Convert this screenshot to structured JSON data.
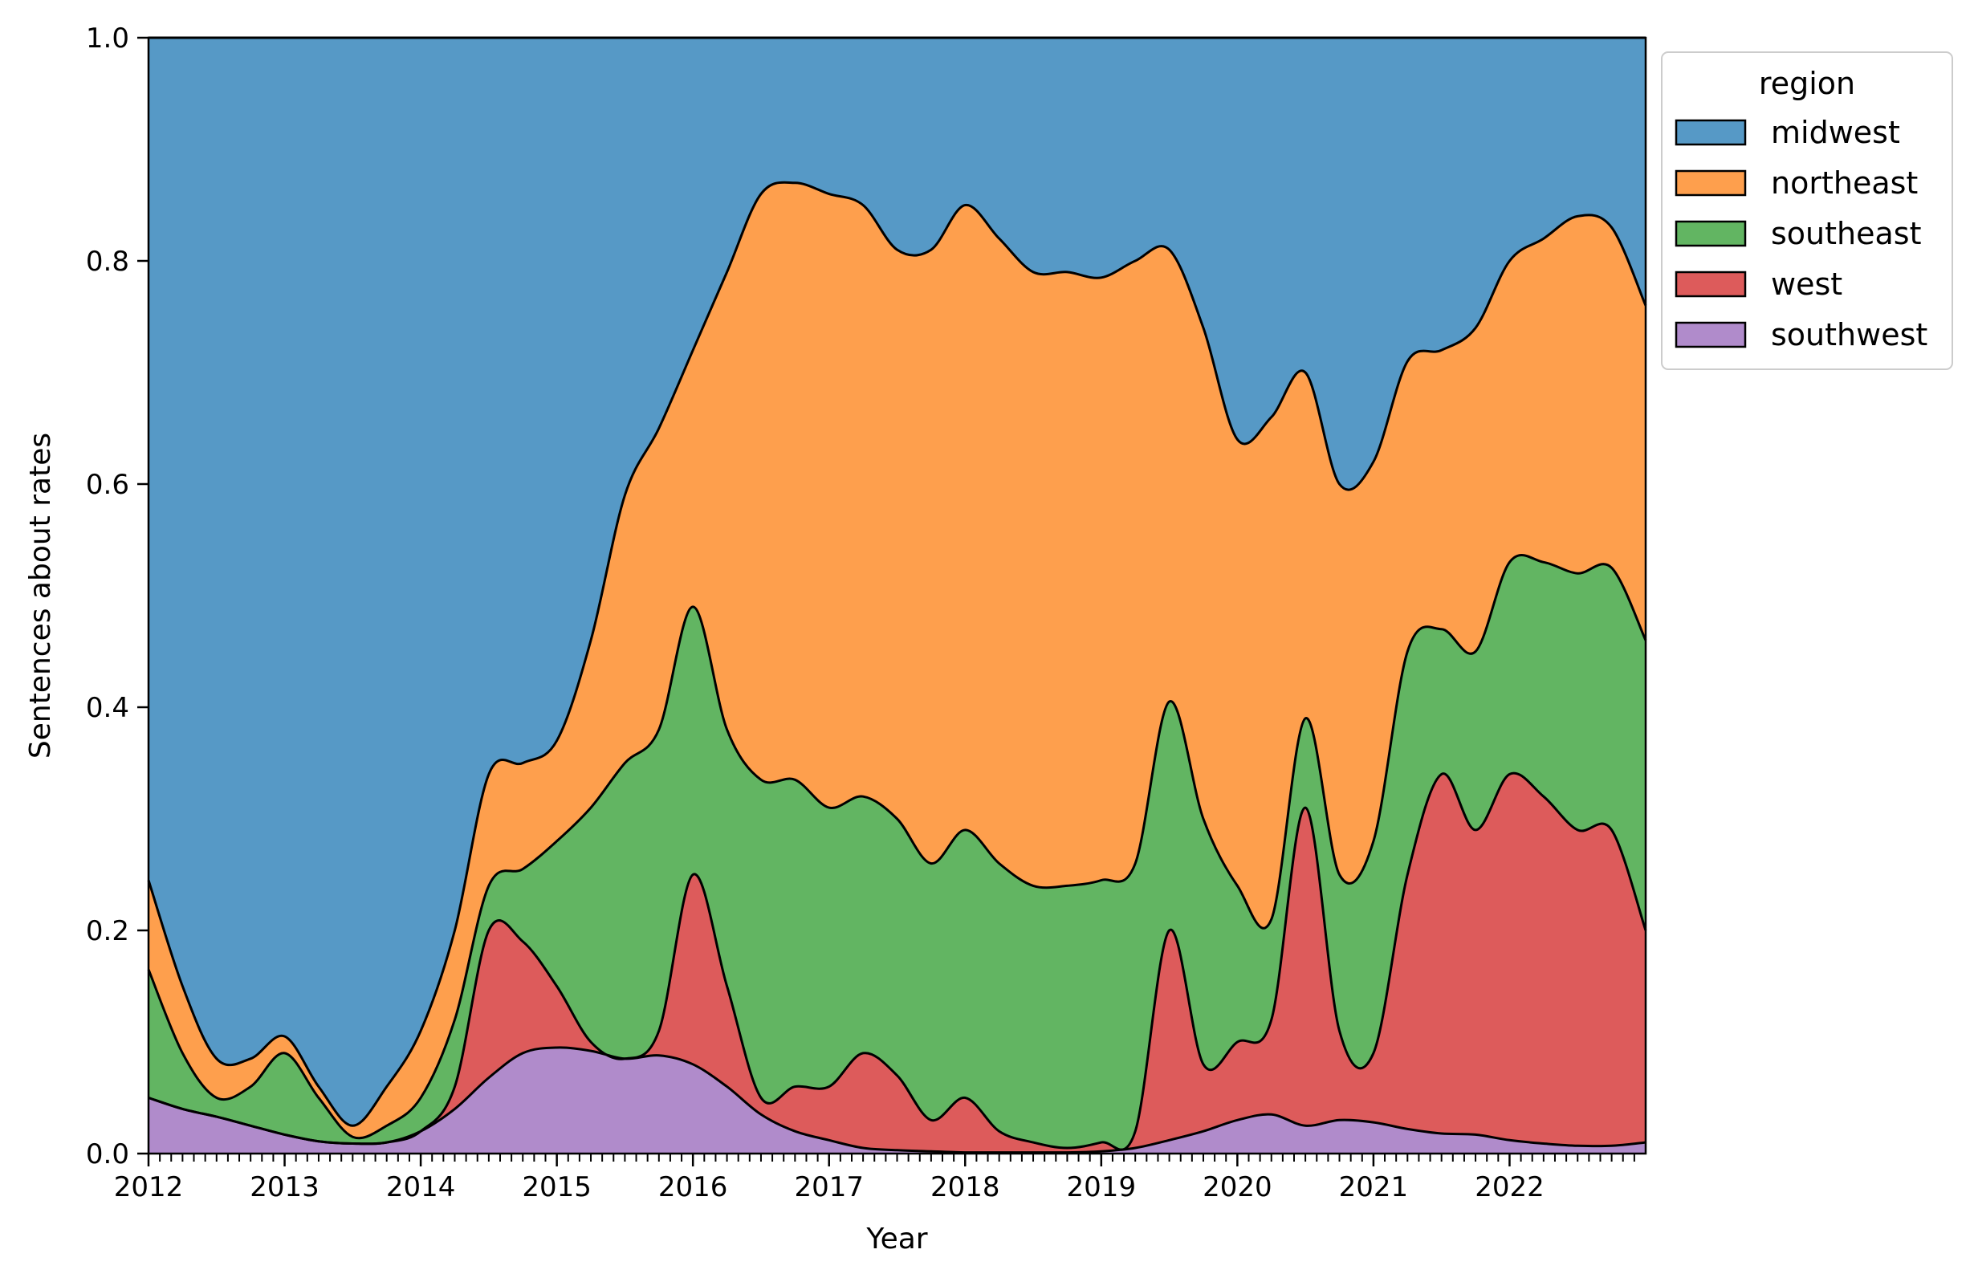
{
  "chart_data": {
    "type": "area",
    "stacked": true,
    "normalized": true,
    "xlabel": "Year",
    "ylabel": "Sentences about rates",
    "xlim": [
      2012,
      2023
    ],
    "ylim": [
      0,
      1
    ],
    "xticks": [
      2012,
      2013,
      2014,
      2015,
      2016,
      2017,
      2018,
      2019,
      2020,
      2021,
      2022
    ],
    "xtick_labels": [
      "2012",
      "2013",
      "2014",
      "2015",
      "2016",
      "2017",
      "2018",
      "2019",
      "2020",
      "2021",
      "2022"
    ],
    "minor_ticks_per_year": 12,
    "yticks": [
      0.0,
      0.2,
      0.4,
      0.6,
      0.8,
      1.0
    ],
    "ytick_labels": [
      "0.0",
      "0.2",
      "0.4",
      "0.6",
      "0.8",
      "1.0"
    ],
    "legend": {
      "title": "region",
      "placement": "outside upper right"
    },
    "x": [
      2012.0,
      2012.25,
      2012.5,
      2012.75,
      2013.0,
      2013.25,
      2013.5,
      2013.75,
      2014.0,
      2014.25,
      2014.5,
      2014.75,
      2015.0,
      2015.25,
      2015.5,
      2015.75,
      2016.0,
      2016.25,
      2016.5,
      2016.75,
      2017.0,
      2017.25,
      2017.5,
      2017.75,
      2018.0,
      2018.25,
      2018.5,
      2018.75,
      2019.0,
      2019.25,
      2019.5,
      2019.75,
      2020.0,
      2020.25,
      2020.5,
      2020.75,
      2021.0,
      2021.25,
      2021.5,
      2021.75,
      2022.0,
      2022.25,
      2022.5,
      2022.75,
      2023.0
    ],
    "series": [
      {
        "name": "southwest",
        "color": "#b08bcb",
        "values": [
          0.05,
          0.04,
          0.033,
          0.025,
          0.017,
          0.011,
          0.009,
          0.01,
          0.02,
          0.04,
          0.068,
          0.09,
          0.095,
          0.092,
          0.085,
          0.088,
          0.08,
          0.06,
          0.035,
          0.02,
          0.012,
          0.005,
          0.003,
          0.002,
          0.001,
          0.001,
          0.001,
          0.001,
          0.002,
          0.005,
          0.012,
          0.02,
          0.03,
          0.035,
          0.025,
          0.03,
          0.028,
          0.022,
          0.018,
          0.017,
          0.012,
          0.009,
          0.007,
          0.007,
          0.01
        ]
      },
      {
        "name": "west",
        "color": "#dd5b5b",
        "values": [
          0.05,
          0.04,
          0.033,
          0.025,
          0.017,
          0.011,
          0.009,
          0.01,
          0.02,
          0.06,
          0.2,
          0.19,
          0.15,
          0.1,
          0.085,
          0.11,
          0.25,
          0.15,
          0.05,
          0.06,
          0.06,
          0.09,
          0.07,
          0.03,
          0.05,
          0.02,
          0.01,
          0.005,
          0.01,
          0.02,
          0.2,
          0.08,
          0.1,
          0.12,
          0.31,
          0.11,
          0.09,
          0.25,
          0.34,
          0.29,
          0.34,
          0.32,
          0.29,
          0.29,
          0.2
        ]
      },
      {
        "name": "southeast",
        "color": "#62b562",
        "values": [
          0.165,
          0.09,
          0.05,
          0.06,
          0.09,
          0.05,
          0.015,
          0.025,
          0.05,
          0.12,
          0.24,
          0.255,
          0.28,
          0.31,
          0.35,
          0.38,
          0.49,
          0.38,
          0.335,
          0.335,
          0.31,
          0.32,
          0.3,
          0.26,
          0.29,
          0.26,
          0.24,
          0.24,
          0.245,
          0.26,
          0.405,
          0.3,
          0.24,
          0.21,
          0.39,
          0.25,
          0.28,
          0.45,
          0.47,
          0.45,
          0.53,
          0.53,
          0.52,
          0.525,
          0.46
        ]
      },
      {
        "name": "northeast",
        "color": "#fe9f4d",
        "values": [
          0.245,
          0.15,
          0.085,
          0.085,
          0.105,
          0.06,
          0.025,
          0.06,
          0.11,
          0.2,
          0.34,
          0.35,
          0.37,
          0.46,
          0.59,
          0.65,
          0.72,
          0.79,
          0.86,
          0.87,
          0.86,
          0.85,
          0.81,
          0.81,
          0.85,
          0.82,
          0.79,
          0.79,
          0.785,
          0.8,
          0.81,
          0.74,
          0.64,
          0.66,
          0.7,
          0.6,
          0.62,
          0.71,
          0.72,
          0.74,
          0.8,
          0.82,
          0.84,
          0.83,
          0.76
        ]
      },
      {
        "name": "midwest",
        "color": "#5699c6",
        "values": [
          1.0,
          1.0,
          1.0,
          1.0,
          1.0,
          1.0,
          1.0,
          1.0,
          1.0,
          1.0,
          1.0,
          1.0,
          1.0,
          1.0,
          1.0,
          1.0,
          1.0,
          1.0,
          1.0,
          1.0,
          1.0,
          1.0,
          1.0,
          1.0,
          1.0,
          1.0,
          1.0,
          1.0,
          1.0,
          1.0,
          1.0,
          1.0,
          1.0,
          1.0,
          1.0,
          1.0,
          1.0,
          1.0,
          1.0,
          1.0,
          1.0,
          1.0,
          1.0,
          1.0,
          1.0
        ]
      }
    ],
    "legend_order": [
      "midwest",
      "northeast",
      "southeast",
      "west",
      "southwest"
    ]
  }
}
